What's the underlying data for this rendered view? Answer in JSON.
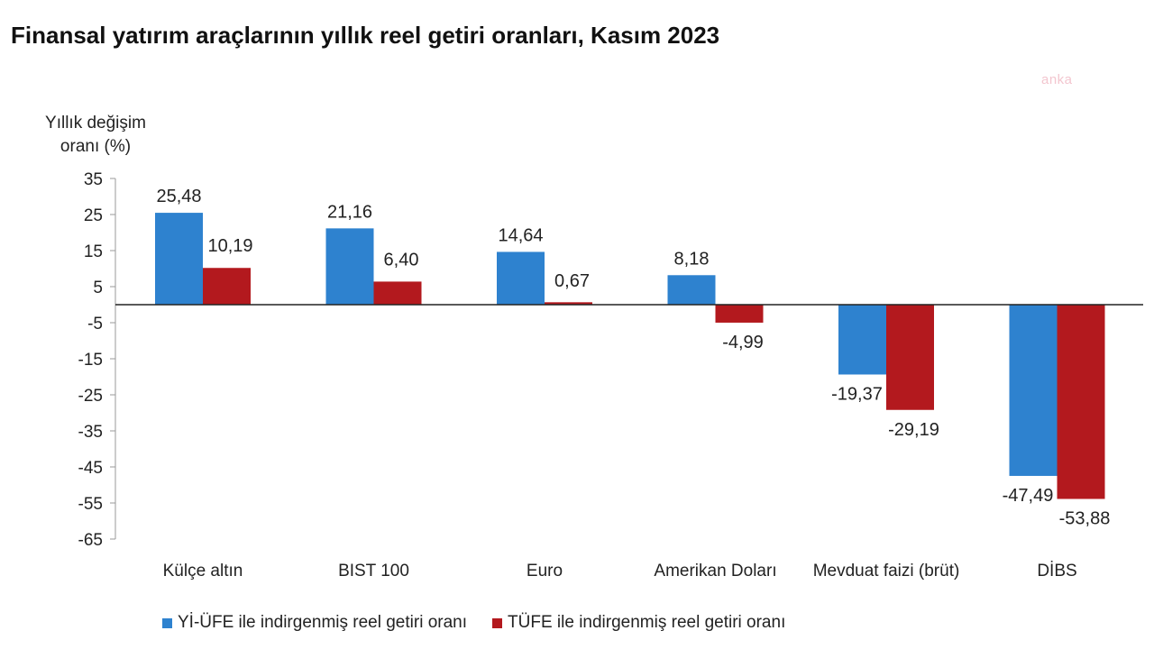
{
  "title": "Finansal yatırım araçlarının yıllık reel getiri oranları, Kasım 2023",
  "watermark": "anka",
  "chart_data": {
    "type": "bar",
    "ylabel": "Yıllık değişim oranı (%)",
    "ylim": [
      -65,
      35
    ],
    "yticks": [
      35,
      25,
      15,
      5,
      -5,
      -15,
      -25,
      -35,
      -45,
      -55,
      -65
    ],
    "categories": [
      "Külçe altın",
      "BIST 100",
      "Euro",
      "Amerikan Doları",
      "Mevduat faizi (brüt)",
      "DİBS"
    ],
    "series": [
      {
        "name": "Yİ-ÜFE ile indirgenmiş reel getiri oranı",
        "color": "#2e82cf",
        "values": [
          25.48,
          21.16,
          14.64,
          8.18,
          -19.37,
          -47.49
        ],
        "labels": [
          "25,48",
          "21,16",
          "14,64",
          "8,18",
          "-19,37",
          "-47,49"
        ]
      },
      {
        "name": "TÜFE ile indirgenmiş reel getiri oranı",
        "color": "#b3191e",
        "values": [
          10.19,
          6.4,
          0.67,
          -4.99,
          -29.19,
          -53.88
        ],
        "labels": [
          "10,19",
          "6,40",
          "0,67",
          "-4,99",
          "-29,19",
          "-53,88"
        ]
      }
    ],
    "legend_position": "bottom",
    "grid": false
  }
}
